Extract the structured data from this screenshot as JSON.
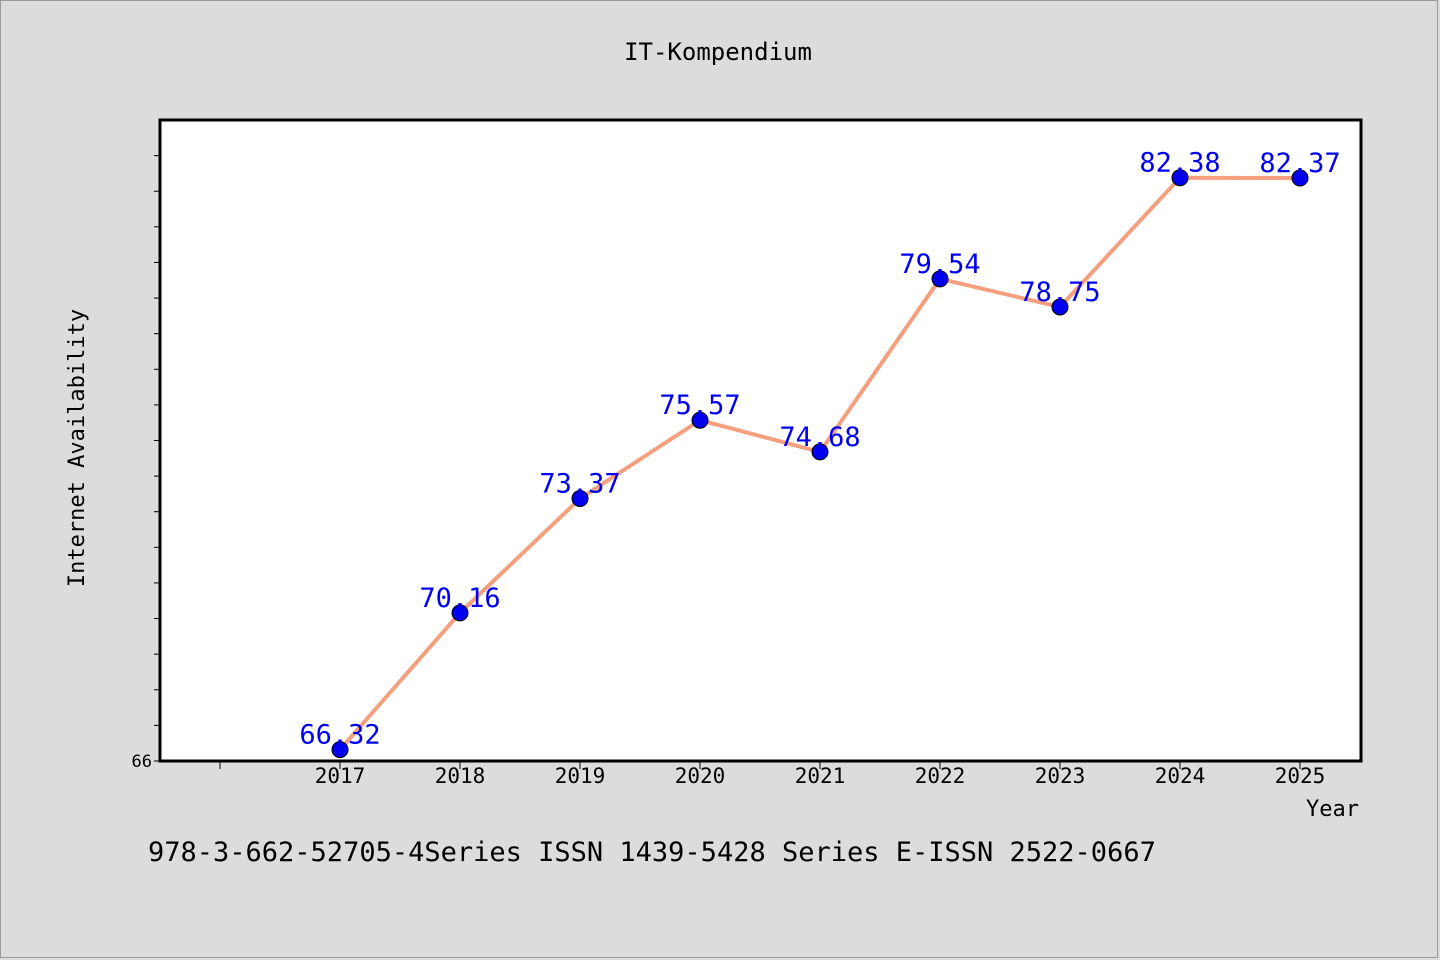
{
  "chart_data": {
    "type": "line",
    "title": "IT-Kompendium",
    "xlabel": "Year",
    "ylabel": "Internet Availability",
    "categories": [
      "2017",
      "2018",
      "2019",
      "2020",
      "2021",
      "2022",
      "2023",
      "2024",
      "2025"
    ],
    "values": [
      66.32,
      70.16,
      73.37,
      75.57,
      74.68,
      79.54,
      78.75,
      82.38,
      82.37
    ],
    "data_labels": [
      "66.32",
      "70.16",
      "73.37",
      "75.57",
      "74.68",
      "79.54",
      "78.75",
      "82.38",
      "82.37"
    ],
    "ylim": [
      66,
      84
    ],
    "y_tick_labels": [
      "66"
    ],
    "grid": false,
    "legend": "none",
    "colors": {
      "line": "#f4a07f",
      "marker": "#0000ee",
      "label": "#0000ee",
      "background": "#dcdcdc",
      "plot_background": "#ffffff"
    }
  },
  "footer": {
    "text": "978-3-662-52705-4Series ISSN 1439-5428 Series E-ISSN 2522-0667"
  }
}
